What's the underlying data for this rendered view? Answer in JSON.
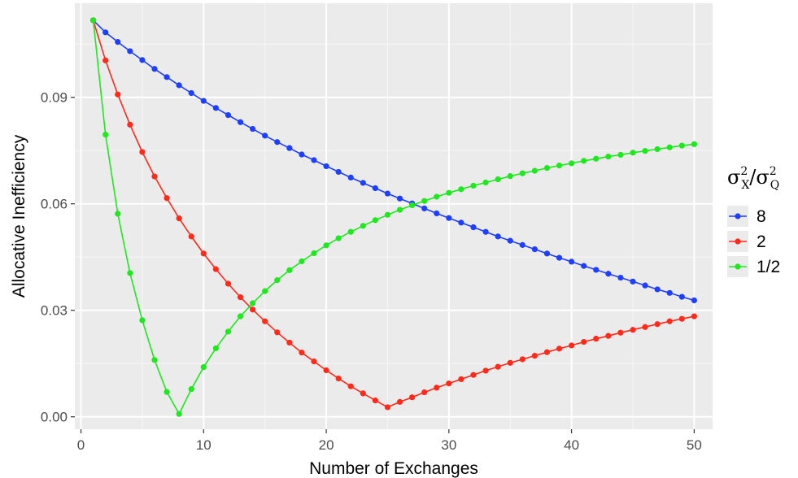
{
  "chart_data": {
    "type": "line",
    "xlabel": "Number of Exchanges",
    "ylabel": "Allocative Inefficiency",
    "xlim": [
      -0.5,
      51.5
    ],
    "ylim": [
      -0.0035,
      0.1165
    ],
    "xticks": [
      0,
      10,
      20,
      30,
      40,
      50
    ],
    "xtick_labels": [
      "0",
      "10",
      "20",
      "30",
      "40",
      "50"
    ],
    "yticks": [
      0.0,
      0.03,
      0.06,
      0.09
    ],
    "ytick_labels": [
      "0.00",
      "0.03",
      "0.06",
      "0.09"
    ],
    "grid": true,
    "legend": {
      "title_base": "σ",
      "title_sup1": "2",
      "title_sub1": "X",
      "title_slash": "/",
      "title_sup2": "2",
      "title_sub2": "Q",
      "position": "right"
    },
    "x": [
      1,
      2,
      3,
      4,
      5,
      6,
      7,
      8,
      9,
      10,
      11,
      12,
      13,
      14,
      15,
      16,
      17,
      18,
      19,
      20,
      21,
      22,
      23,
      24,
      25,
      26,
      27,
      28,
      29,
      30,
      31,
      32,
      33,
      34,
      35,
      36,
      37,
      38,
      39,
      40,
      41,
      42,
      43,
      44,
      45,
      46,
      47,
      48,
      49,
      50
    ],
    "series": [
      {
        "name": "8",
        "color": "#1f3fff",
        "values": [
          0.1117,
          0.1083,
          0.1056,
          0.103,
          0.1005,
          0.098,
          0.0957,
          0.0934,
          0.0912,
          0.089,
          0.087,
          0.085,
          0.083,
          0.0811,
          0.0792,
          0.0774,
          0.0757,
          0.0739,
          0.0723,
          0.0706,
          0.069,
          0.0674,
          0.0659,
          0.0644,
          0.0629,
          0.0615,
          0.0601,
          0.0587,
          0.0573,
          0.056,
          0.0547,
          0.0534,
          0.0521,
          0.0508,
          0.0496,
          0.0484,
          0.0472,
          0.046,
          0.0448,
          0.0437,
          0.0425,
          0.0414,
          0.0403,
          0.0392,
          0.0381,
          0.037,
          0.0359,
          0.0349,
          0.0338,
          0.0328
        ]
      },
      {
        "name": "2",
        "color": "#ff2a1a",
        "values": [
          0.1117,
          0.1004,
          0.0908,
          0.0823,
          0.0746,
          0.0677,
          0.0616,
          0.0559,
          0.0508,
          0.046,
          0.0416,
          0.0375,
          0.0337,
          0.0302,
          0.0269,
          0.0238,
          0.0209,
          0.0181,
          0.0156,
          0.0131,
          0.0108,
          0.0086,
          0.0066,
          0.0046,
          0.0027,
          0.0042,
          0.0055,
          0.0069,
          0.0082,
          0.0094,
          0.0106,
          0.0118,
          0.013,
          0.0141,
          0.0152,
          0.0162,
          0.0172,
          0.0182,
          0.0192,
          0.0201,
          0.0211,
          0.022,
          0.0228,
          0.0237,
          0.0245,
          0.0253,
          0.0261,
          0.0269,
          0.0276,
          0.0283
        ]
      },
      {
        "name": "1/2",
        "color": "#1ee81e",
        "values": [
          0.1117,
          0.0795,
          0.0572,
          0.0405,
          0.0272,
          0.016,
          0.007,
          0.0008,
          0.0078,
          0.014,
          0.0193,
          0.024,
          0.0283,
          0.032,
          0.0354,
          0.0385,
          0.0413,
          0.0438,
          0.0461,
          0.0483,
          0.0503,
          0.0521,
          0.0538,
          0.0554,
          0.0569,
          0.0583,
          0.0596,
          0.0608,
          0.062,
          0.0631,
          0.0641,
          0.0651,
          0.066,
          0.0669,
          0.0678,
          0.0686,
          0.0693,
          0.0701,
          0.0708,
          0.0714,
          0.0721,
          0.0727,
          0.0733,
          0.0738,
          0.0744,
          0.0749,
          0.0754,
          0.0759,
          0.0764,
          0.0768
        ]
      }
    ]
  }
}
